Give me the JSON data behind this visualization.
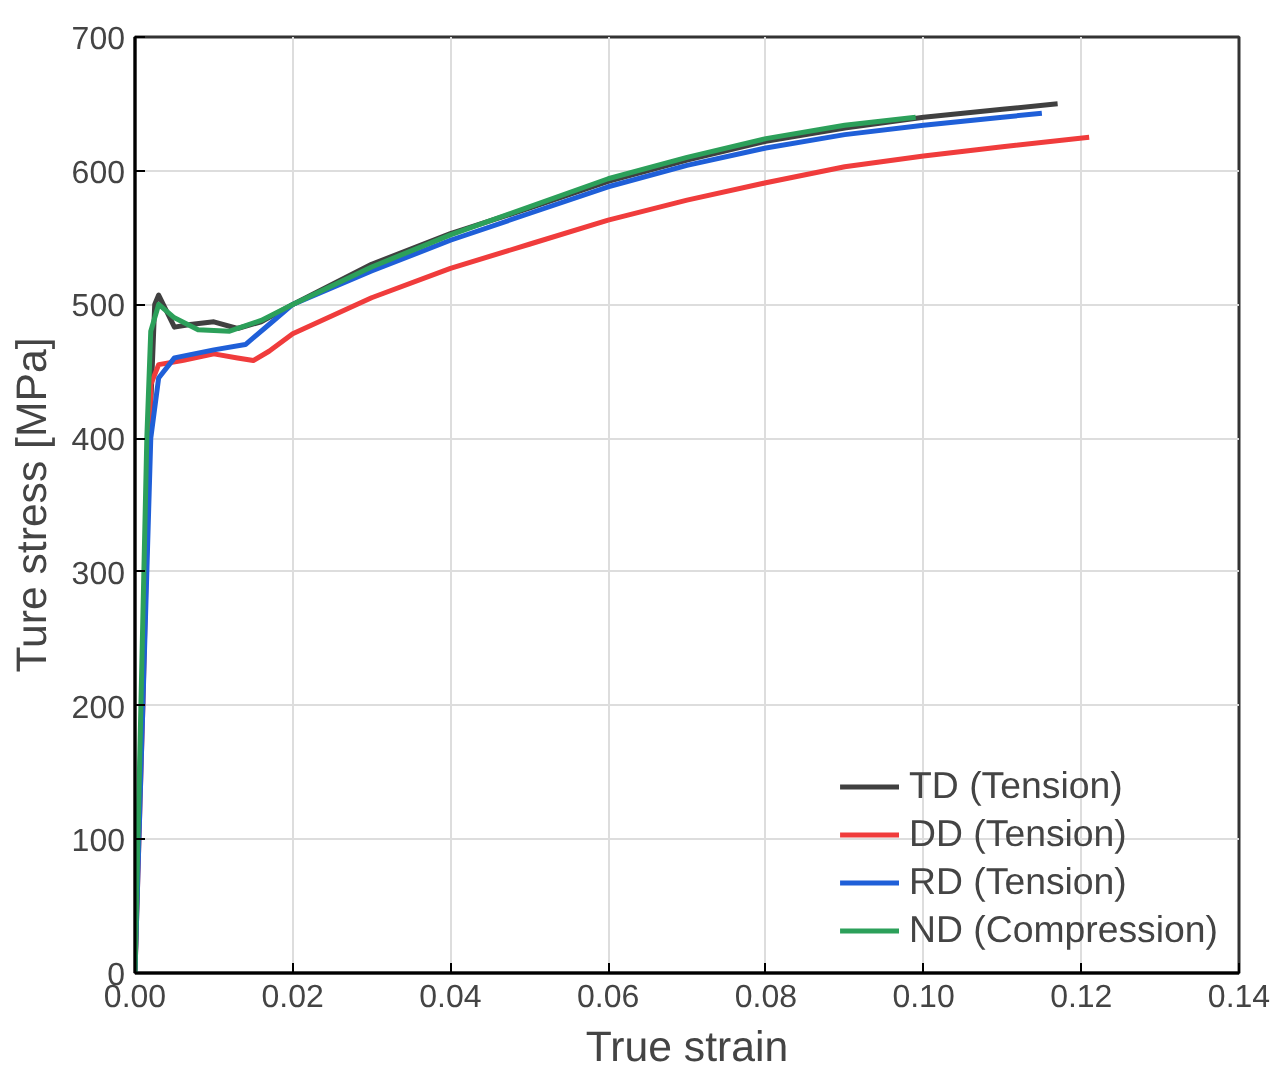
{
  "chart_data": {
    "type": "line",
    "xlabel": "True strain",
    "ylabel": "Ture stress [MPa]",
    "xlim": [
      0,
      0.14
    ],
    "ylim": [
      0,
      700
    ],
    "xticks": [
      {
        "value": 0,
        "label": "0.00"
      },
      {
        "value": 0.02,
        "label": "0.02"
      },
      {
        "value": 0.04,
        "label": "0.04"
      },
      {
        "value": 0.06,
        "label": "0.06"
      },
      {
        "value": 0.08,
        "label": "0.08"
      },
      {
        "value": 0.1,
        "label": "0.10"
      },
      {
        "value": 0.12,
        "label": "0.12"
      },
      {
        "value": 0.14,
        "label": "0.14"
      }
    ],
    "yticks": [
      0,
      100,
      200,
      300,
      400,
      500,
      600,
      700
    ],
    "grid": true,
    "legend": "bottom right",
    "marker": "none",
    "line_style": "solid",
    "series": [
      {
        "name": "TD (Tension)",
        "color": "#404040",
        "x": [
          0,
          0.0015,
          0.0025,
          0.003,
          0.004,
          0.005,
          0.007,
          0.01,
          0.013,
          0.016,
          0.02,
          0.03,
          0.04,
          0.05,
          0.06,
          0.07,
          0.08,
          0.09,
          0.1,
          0.11,
          0.117
        ],
        "values": [
          0,
          350,
          500,
          507,
          495,
          483,
          485,
          487,
          482,
          487,
          500,
          530,
          553,
          572,
          592,
          608,
          622,
          632,
          640,
          646,
          650
        ]
      },
      {
        "name": "DD (Tension)",
        "color": "#f03c3c",
        "x": [
          0,
          0.001,
          0.002,
          0.003,
          0.006,
          0.01,
          0.013,
          0.015,
          0.017,
          0.02,
          0.03,
          0.04,
          0.05,
          0.06,
          0.07,
          0.08,
          0.09,
          0.1,
          0.11,
          0.121
        ],
        "values": [
          0,
          200,
          440,
          455,
          458,
          463,
          460,
          458,
          465,
          478,
          505,
          527,
          545,
          563,
          578,
          591,
          603,
          611,
          618,
          625
        ]
      },
      {
        "name": "RD (Tension)",
        "color": "#1f5fd8",
        "x": [
          0,
          0.001,
          0.002,
          0.003,
          0.005,
          0.01,
          0.014,
          0.017,
          0.02,
          0.03,
          0.04,
          0.05,
          0.06,
          0.07,
          0.08,
          0.09,
          0.1,
          0.11,
          0.115
        ],
        "values": [
          0,
          200,
          400,
          445,
          460,
          466,
          470,
          485,
          500,
          525,
          548,
          568,
          588,
          604,
          617,
          627,
          634,
          640,
          643
        ]
      },
      {
        "name": "ND (Compression)",
        "color": "#2ca05a",
        "x": [
          0,
          0.0015,
          0.002,
          0.003,
          0.005,
          0.008,
          0.012,
          0.016,
          0.02,
          0.03,
          0.04,
          0.05,
          0.06,
          0.07,
          0.08,
          0.09,
          0.099
        ],
        "values": [
          0,
          400,
          480,
          500,
          490,
          481,
          480,
          488,
          500,
          528,
          552,
          573,
          594,
          610,
          624,
          634,
          640
        ]
      }
    ]
  }
}
